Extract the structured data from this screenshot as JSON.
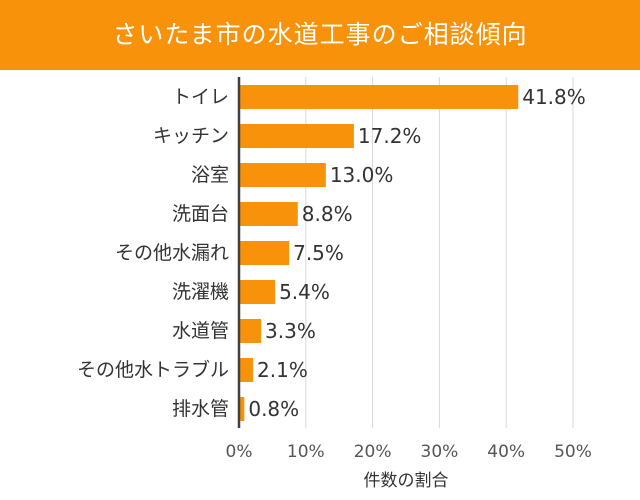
{
  "colors": {
    "accent": "#f7920a",
    "bar": "#f7920a",
    "grid": "#d9d9d9",
    "axis": "#404040",
    "text": "#333333"
  },
  "chart_data": {
    "type": "bar",
    "orientation": "horizontal",
    "title": "さいたま市の水道工事のご相談傾向",
    "xlabel": "件数の割合",
    "ylabel": "",
    "categories": [
      "トイレ",
      "キッチン",
      "浴室",
      "洗面台",
      "その他水漏れ",
      "洗濯機",
      "水道管",
      "その他水トラブル",
      "排水管"
    ],
    "values": [
      41.8,
      17.2,
      13.0,
      8.8,
      7.5,
      5.4,
      3.3,
      2.1,
      0.8
    ],
    "value_labels": [
      "41.8%",
      "17.2%",
      "13.0%",
      "8.8%",
      "7.5%",
      "5.4%",
      "3.3%",
      "2.1%",
      "0.8%"
    ],
    "xlim": [
      0,
      50
    ],
    "xticks": [
      0,
      10,
      20,
      30,
      40,
      50
    ],
    "xtick_labels": [
      "0%",
      "10%",
      "20%",
      "30%",
      "40%",
      "50%"
    ],
    "grid": true,
    "legend": "none"
  }
}
